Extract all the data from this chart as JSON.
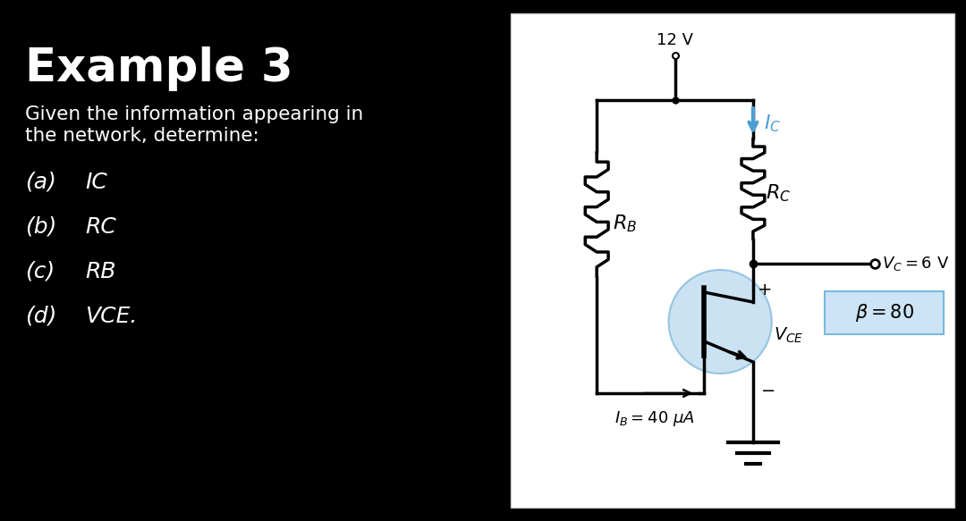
{
  "bg_color": "#000000",
  "panel_bg": "#ffffff",
  "title": "Example 3",
  "subtitle_line1": "Given the information appearing in",
  "subtitle_line2": "the network, determine:",
  "items": [
    [
      "(a)",
      "IC"
    ],
    [
      "(b)",
      "RC"
    ],
    [
      "(c)",
      "RB"
    ],
    [
      "(d)",
      "VCE."
    ]
  ],
  "voltage_label": "12 V",
  "blue_color": "#4a9fd4",
  "transistor_circle_color": "#c5dff0"
}
